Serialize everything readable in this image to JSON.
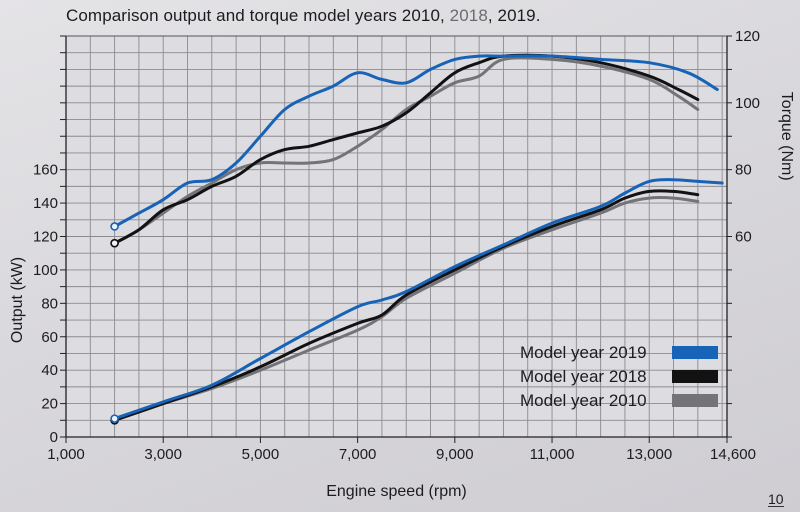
{
  "title": {
    "prefix": "Comparison output and torque model years 2010, ",
    "highlight": "2018",
    "suffix": ", 2019."
  },
  "page_number": "10",
  "chart_data": {
    "type": "line",
    "title": "Comparison output and torque model years 2010, 2018, 2019.",
    "xlabel": "Engine speed (rpm)",
    "ylabel_left": "Output (kW)",
    "ylabel_right": "Torque (Nm)",
    "xlim": [
      1000,
      14600
    ],
    "ylim_left": [
      0,
      240
    ],
    "ylim_right": [
      0,
      120
    ],
    "x_ticks": [
      1000,
      3000,
      5000,
      7000,
      9000,
      11000,
      13000,
      14600
    ],
    "x_tick_labels": [
      "1,000",
      "3,000",
      "5,000",
      "7,000",
      "9,000",
      "11,000",
      "13,000",
      "14,600"
    ],
    "y_left_ticks": [
      0,
      20,
      40,
      60,
      80,
      100,
      120,
      140,
      160
    ],
    "y_right_ticks": [
      60,
      80,
      100,
      120
    ],
    "grid": true,
    "legend": [
      {
        "label": "Model year 2019",
        "color": "#1763b8"
      },
      {
        "label": "Model year 2018",
        "color": "#121212"
      },
      {
        "label": "Model year 2010",
        "color": "#747478"
      }
    ],
    "legend_position": "bottom-right",
    "series": [
      {
        "name": "Model year 2019",
        "quantity": "output",
        "axis": "left",
        "color": "#1763b8",
        "x": [
          2000,
          3000,
          4000,
          5000,
          6000,
          7000,
          7500,
          8000,
          9000,
          10000,
          11000,
          12000,
          12500,
          13000,
          13500,
          14000,
          14500
        ],
        "y": [
          11,
          21,
          31,
          47,
          63,
          78,
          82,
          87,
          102,
          115,
          128,
          138,
          146,
          153,
          154,
          153,
          152
        ]
      },
      {
        "name": "Model year 2018",
        "quantity": "output",
        "axis": "left",
        "color": "#121212",
        "x": [
          2000,
          3000,
          4000,
          5000,
          6000,
          7000,
          7500,
          8000,
          9000,
          10000,
          11000,
          12000,
          12500,
          13000,
          13500,
          14000
        ],
        "y": [
          10,
          20,
          30,
          42,
          56,
          68,
          73,
          85,
          100,
          114,
          126,
          136,
          143,
          147,
          147,
          145
        ]
      },
      {
        "name": "Model year 2010",
        "quantity": "output",
        "axis": "left",
        "color": "#747478",
        "x": [
          2000,
          3000,
          4000,
          5000,
          6000,
          7000,
          7500,
          8000,
          9000,
          10000,
          11000,
          12000,
          12500,
          13000,
          13500,
          14000
        ],
        "y": [
          10,
          20,
          29,
          40,
          52,
          64,
          72,
          83,
          98,
          113,
          124,
          134,
          140,
          143,
          143,
          141
        ]
      },
      {
        "name": "Model year 2019",
        "quantity": "torque",
        "axis": "right",
        "color": "#1763b8",
        "x": [
          2000,
          2500,
          3000,
          3500,
          4000,
          4500,
          5000,
          5500,
          6000,
          6500,
          7000,
          7500,
          8000,
          8500,
          9000,
          9500,
          10000,
          11000,
          12000,
          13000,
          13800,
          14400
        ],
        "y": [
          63,
          67,
          71,
          76,
          77,
          82,
          90,
          98,
          102,
          105,
          109,
          107,
          106,
          110,
          113,
          114,
          114,
          114,
          113,
          112,
          109,
          104
        ]
      },
      {
        "name": "Model year 2018",
        "quantity": "torque",
        "axis": "right",
        "color": "#121212",
        "x": [
          2000,
          2500,
          3000,
          3500,
          4000,
          4500,
          5000,
          5500,
          6000,
          6500,
          7000,
          7500,
          8000,
          8500,
          9000,
          9500,
          10000,
          11000,
          12000,
          13000,
          13600,
          14000
        ],
        "y": [
          58,
          62,
          68,
          71,
          75,
          78,
          83,
          86,
          87,
          89,
          91,
          93,
          97,
          103,
          109,
          112,
          114,
          114,
          112,
          108,
          104,
          101
        ]
      },
      {
        "name": "Model year 2010",
        "quantity": "torque",
        "axis": "right",
        "color": "#747478",
        "x": [
          2000,
          2500,
          3000,
          3500,
          4000,
          4500,
          5000,
          5500,
          6000,
          6500,
          7000,
          7500,
          8000,
          8500,
          9000,
          9500,
          10000,
          11000,
          12000,
          13000,
          13600,
          14000
        ],
        "y": [
          58,
          62,
          67,
          72,
          76,
          80,
          82,
          82,
          82,
          83,
          87,
          92,
          98,
          102,
          106,
          108,
          113,
          113,
          111,
          107,
          102,
          98
        ]
      }
    ]
  }
}
